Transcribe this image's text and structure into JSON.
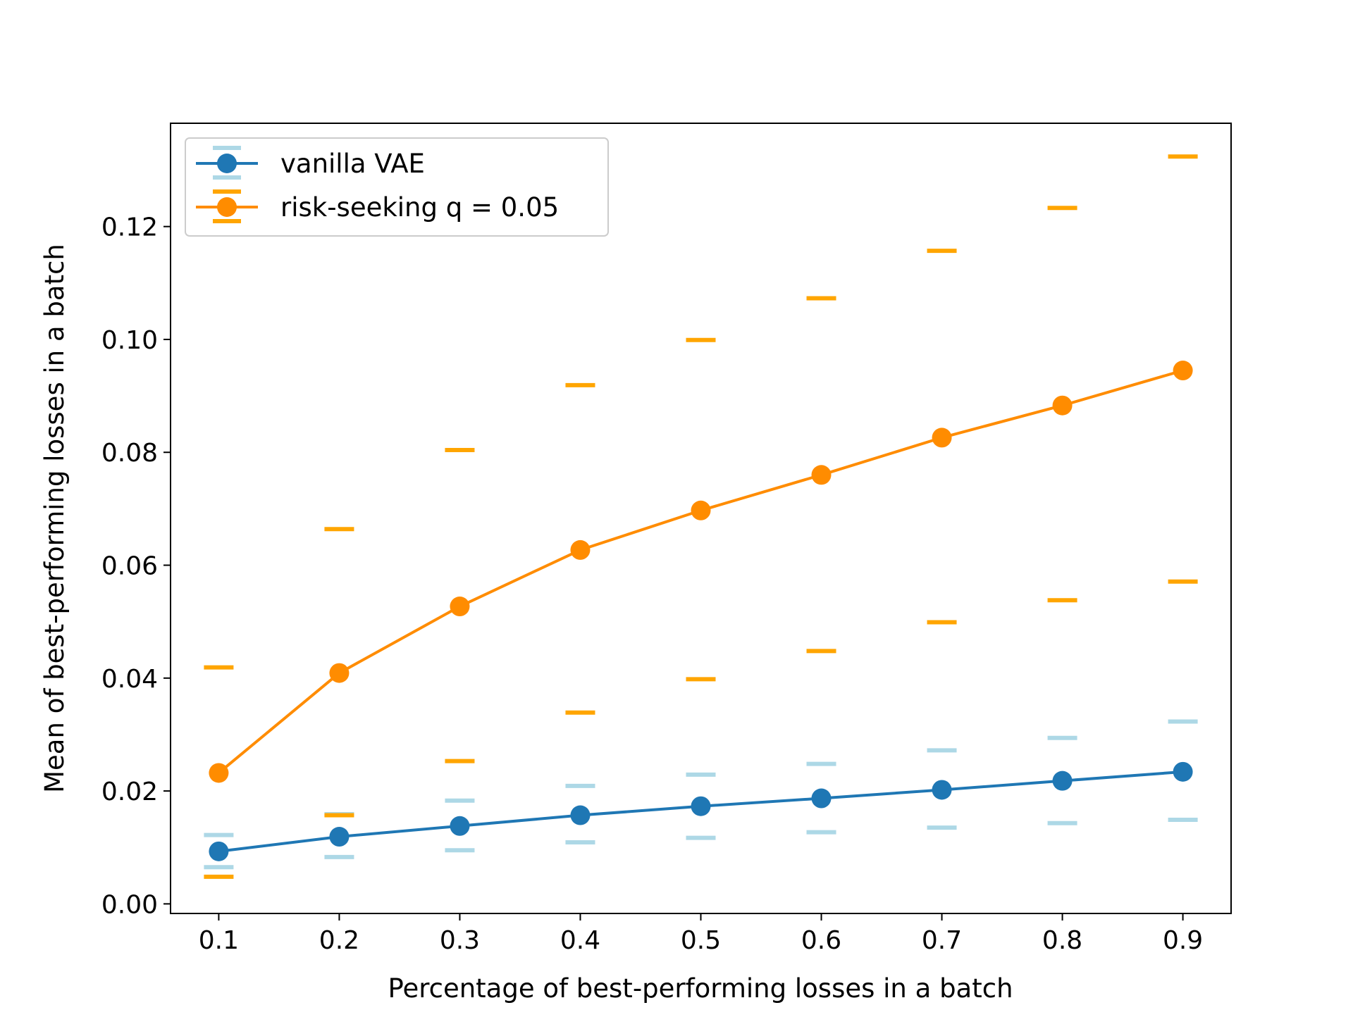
{
  "chart_data": {
    "type": "line",
    "title": "",
    "xlabel": "Percentage of best-performing losses in a batch",
    "ylabel": "Mean of best-performing losses in a batch",
    "x": [
      0.1,
      0.2,
      0.3,
      0.4,
      0.5,
      0.6,
      0.7,
      0.8,
      0.9
    ],
    "xticks": [
      "0.1",
      "0.2",
      "0.3",
      "0.4",
      "0.5",
      "0.6",
      "0.7",
      "0.8",
      "0.9"
    ],
    "xlim": [
      0.06,
      0.94
    ],
    "yticks": [
      "0.00",
      "0.02",
      "0.04",
      "0.06",
      "0.08",
      "0.10",
      "0.12"
    ],
    "ylim": [
      -0.0017,
      0.1383
    ],
    "grid": false,
    "legend_position": "upper-left",
    "series": [
      {
        "name": "vanilla VAE",
        "color": "#1f77b4",
        "error_color": "#add8e6",
        "marker": "circle",
        "values": [
          0.0093,
          0.0119,
          0.0138,
          0.0157,
          0.0173,
          0.0187,
          0.0202,
          0.0218,
          0.0234
        ],
        "upper": [
          0.0122,
          0.0159,
          0.0183,
          0.0209,
          0.0229,
          0.0248,
          0.0272,
          0.0294,
          0.0323
        ],
        "lower": [
          0.0065,
          0.0083,
          0.0095,
          0.0109,
          0.0117,
          0.0127,
          0.0135,
          0.0143,
          0.0149
        ]
      },
      {
        "name": "risk-seeking q = 0.05",
        "color": "#ff8c00",
        "error_color": "#ffa500",
        "marker": "circle",
        "values": [
          0.0232,
          0.0409,
          0.0527,
          0.0627,
          0.0697,
          0.076,
          0.0826,
          0.0883,
          0.0945
        ],
        "upper": [
          0.0419,
          0.0664,
          0.0804,
          0.0919,
          0.0999,
          0.1073,
          0.1157,
          0.1233,
          0.1324
        ],
        "lower": [
          0.0048,
          0.0157,
          0.0253,
          0.0339,
          0.0398,
          0.0448,
          0.0499,
          0.0538,
          0.0571
        ]
      }
    ]
  }
}
